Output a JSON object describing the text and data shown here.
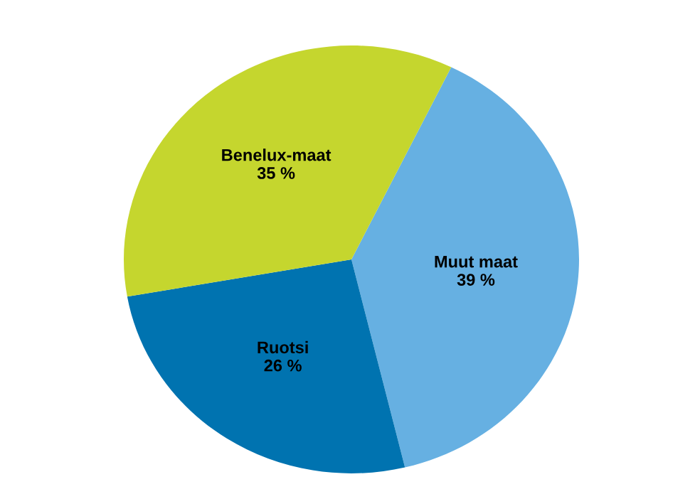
{
  "chart_data": {
    "type": "pie",
    "categories": [
      "Muut maat",
      "Ruotsi",
      "Benelux-maat"
    ],
    "values": [
      39,
      26,
      35
    ],
    "value_labels": [
      "39 %",
      "26 %",
      "35 %"
    ],
    "colors": [
      "#66b0e2",
      "#0073b0",
      "#c5d62e"
    ]
  }
}
